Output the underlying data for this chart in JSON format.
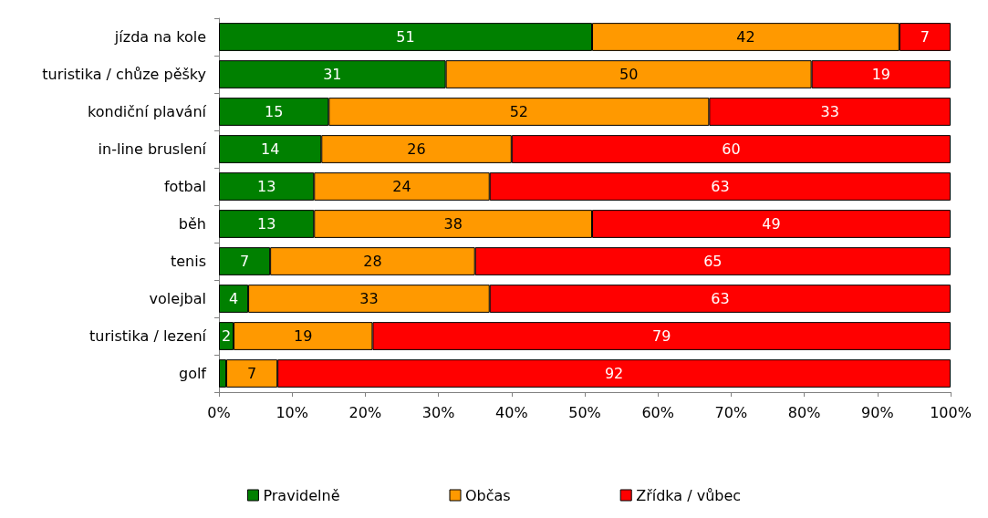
{
  "chart_data": {
    "type": "bar",
    "orientation": "horizontal",
    "stacked": true,
    "categories": [
      "jízda na kole",
      "turistika / chůze pěšky",
      "kondiční plavání",
      "in-line bruslení",
      "fotbal",
      "běh",
      "tenis",
      "volejbal",
      "turistika / lezení",
      "golf"
    ],
    "series": [
      {
        "name": "Pravidelně",
        "color": "#008000",
        "values": [
          51,
          31,
          15,
          14,
          13,
          13,
          7,
          4,
          2,
          1
        ],
        "value_labels": [
          "51",
          "31",
          "15",
          "14",
          "13",
          "13",
          "7",
          "4",
          "2",
          null
        ]
      },
      {
        "name": "Občas",
        "color": "#ff9900",
        "values": [
          42,
          50,
          52,
          26,
          24,
          38,
          28,
          33,
          19,
          7
        ],
        "value_labels": [
          "42",
          "50",
          "52",
          "26",
          "24",
          "38",
          "28",
          "33",
          "19",
          "7"
        ]
      },
      {
        "name": "Zřídka / vůbec",
        "color": "#ff0000",
        "values": [
          7,
          19,
          33,
          60,
          63,
          49,
          65,
          63,
          79,
          92
        ],
        "value_labels": [
          "7",
          "19",
          "33",
          "60",
          "63",
          "49",
          "65",
          "63",
          "79",
          "92"
        ]
      }
    ],
    "xlim": [
      0,
      100
    ],
    "xticks": [
      {
        "value": 0,
        "label": "0%"
      },
      {
        "value": 10,
        "label": "10%"
      },
      {
        "value": 20,
        "label": "20%"
      },
      {
        "value": 30,
        "label": "30%"
      },
      {
        "value": 40,
        "label": "40%"
      },
      {
        "value": 50,
        "label": "50%"
      },
      {
        "value": 60,
        "label": "60%"
      },
      {
        "value": 70,
        "label": "70%"
      },
      {
        "value": 80,
        "label": "80%"
      },
      {
        "value": 90,
        "label": "90%"
      },
      {
        "value": 100,
        "label": "100%"
      }
    ],
    "grid": false,
    "legend": "bottom"
  }
}
